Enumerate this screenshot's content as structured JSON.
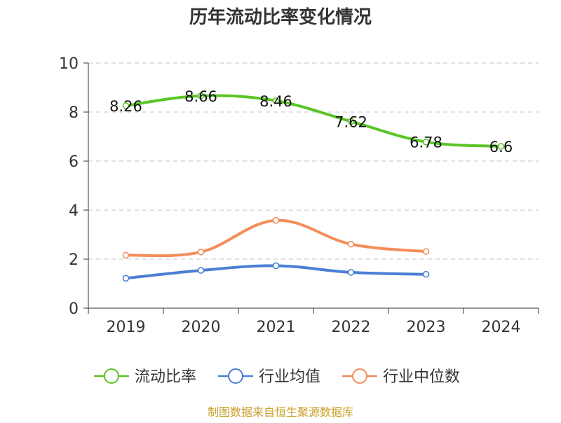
{
  "chart_data": {
    "type": "line",
    "title": "历年流动比率变化情况",
    "categories": [
      "2019",
      "2020",
      "2021",
      "2022",
      "2023",
      "2024"
    ],
    "ylim": [
      0,
      10
    ],
    "yticks": [
      0,
      2,
      4,
      6,
      8,
      10
    ],
    "grid": true,
    "legend_position": "bottom",
    "series": [
      {
        "name": "流动比率",
        "color": "#5ac526",
        "values": [
          8.26,
          8.66,
          8.46,
          7.62,
          6.78,
          6.6
        ],
        "labels": [
          "8.26",
          "8.66",
          "8.46",
          "7.62",
          "6.78",
          "6.6"
        ]
      },
      {
        "name": "行业均值",
        "color": "#4a7fd6",
        "values": [
          1.22,
          1.54,
          1.73,
          1.46,
          1.38,
          null
        ]
      },
      {
        "name": "行业中位数",
        "color": "#f58d5b",
        "values": [
          2.16,
          2.29,
          3.58,
          2.61,
          2.31,
          null
        ]
      }
    ]
  },
  "source": {
    "text": "制图数据来自恒生聚源数据库",
    "color": "#c8a02a"
  }
}
